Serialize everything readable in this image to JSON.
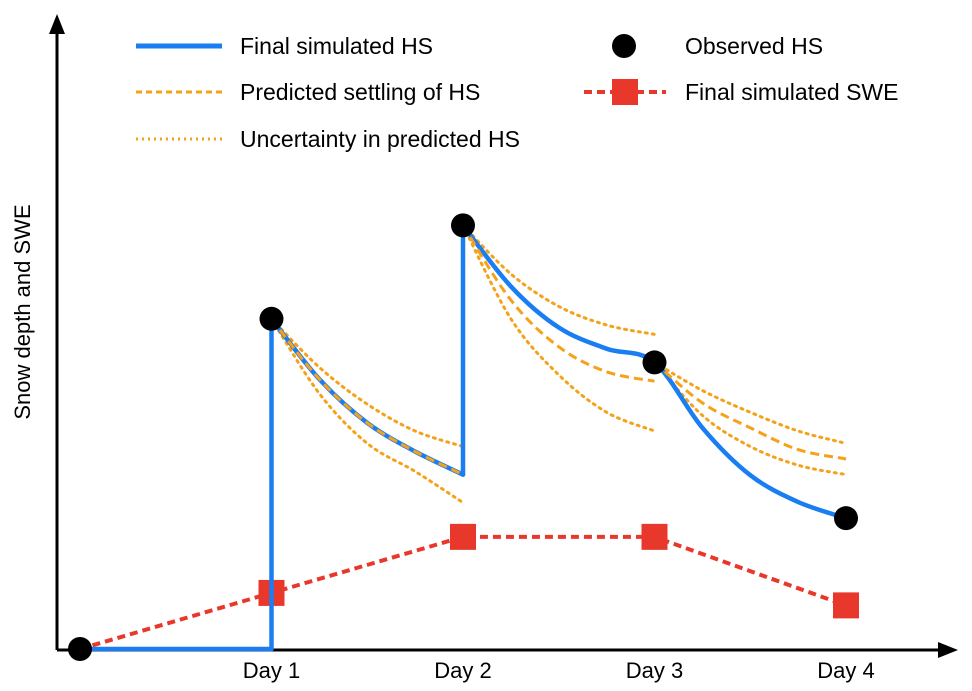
{
  "chart_data": {
    "type": "line",
    "title": "",
    "xlabel": "",
    "ylabel": "Snow depth and SWE",
    "categories": [
      "Day 1",
      "Day 2",
      "Day 3",
      "Day 4"
    ],
    "xlim": [
      0,
      4
    ],
    "ylim": [
      0,
      10
    ],
    "grid": false,
    "legend": {
      "placement": "top",
      "entries": [
        {
          "key": "final_hs",
          "label": "Final simulated HS"
        },
        {
          "key": "settling",
          "label": "Predicted settling of HS"
        },
        {
          "key": "uncertainty",
          "label": "Uncertainty in predicted HS"
        },
        {
          "key": "observed",
          "label": "Observed HS"
        },
        {
          "key": "swe",
          "label": "Final simulated SWE"
        }
      ]
    },
    "colors": {
      "final_hs": "#1a7ef2",
      "settling": "#f5a21b",
      "uncertainty": "#f5a21b",
      "observed": "#000000",
      "swe": "#e8382c",
      "axis": "#000000"
    },
    "series": [
      {
        "name": "Observed HS",
        "style": "marker",
        "points": [
          [
            0,
            0
          ],
          [
            1,
            5.3
          ],
          [
            2,
            6.8
          ],
          [
            3,
            4.6
          ],
          [
            4,
            2.1
          ]
        ]
      },
      {
        "name": "Final simulated SWE",
        "style": "dashed-square",
        "points": [
          [
            0,
            0
          ],
          [
            1,
            0.9
          ],
          [
            2,
            1.8
          ],
          [
            3,
            1.8
          ],
          [
            4,
            0.7
          ]
        ]
      },
      {
        "name": "Final simulated HS",
        "style": "solid",
        "points": [
          [
            0,
            0
          ],
          [
            1,
            0
          ],
          [
            1,
            5.3
          ],
          [
            1.25,
            4.33
          ],
          [
            1.5,
            3.63
          ],
          [
            1.75,
            3.17
          ],
          [
            2,
            2.8
          ],
          [
            2,
            6.8
          ],
          [
            2.25,
            5.82
          ],
          [
            2.5,
            5.16
          ],
          [
            2.75,
            4.82
          ],
          [
            3,
            4.6
          ],
          [
            3.25,
            3.55
          ],
          [
            3.5,
            2.79
          ],
          [
            3.75,
            2.36
          ],
          [
            4,
            2.1
          ]
        ]
      },
      {
        "name": "Predicted settling of HS",
        "style": "dashed",
        "segments": [
          [
            [
              1,
              5.3
            ],
            [
              1.25,
              4.33
            ],
            [
              1.5,
              3.63
            ],
            [
              1.75,
              3.17
            ],
            [
              2,
              2.8
            ]
          ],
          [
            [
              2,
              6.8
            ],
            [
              2.25,
              5.6
            ],
            [
              2.5,
              4.85
            ],
            [
              2.75,
              4.45
            ],
            [
              3,
              4.3
            ]
          ],
          [
            [
              3,
              4.6
            ],
            [
              3.25,
              3.95
            ],
            [
              3.5,
              3.55
            ],
            [
              3.75,
              3.2
            ],
            [
              4,
              3.05
            ]
          ]
        ]
      },
      {
        "name": "Uncertainty in predicted HS",
        "style": "dotted",
        "segments": [
          [
            [
              1,
              5.3
            ],
            [
              1.25,
              4.52
            ],
            [
              1.5,
              3.93
            ],
            [
              1.75,
              3.5
            ],
            [
              2,
              3.25
            ]
          ],
          [
            [
              1,
              5.3
            ],
            [
              1.25,
              4.1
            ],
            [
              1.5,
              3.3
            ],
            [
              1.75,
              2.85
            ],
            [
              2,
              2.35
            ]
          ],
          [
            [
              2,
              6.8
            ],
            [
              2.25,
              6.02
            ],
            [
              2.5,
              5.5
            ],
            [
              2.75,
              5.2
            ],
            [
              3,
              5.05
            ]
          ],
          [
            [
              2,
              6.8
            ],
            [
              2.25,
              5.3
            ],
            [
              2.5,
              4.4
            ],
            [
              2.75,
              3.8
            ],
            [
              3,
              3.5
            ]
          ],
          [
            [
              3,
              4.6
            ],
            [
              3.25,
              4.15
            ],
            [
              3.5,
              3.8
            ],
            [
              3.75,
              3.5
            ],
            [
              4,
              3.3
            ]
          ],
          [
            [
              3,
              4.6
            ],
            [
              3.25,
              3.75
            ],
            [
              3.5,
              3.25
            ],
            [
              3.75,
              2.95
            ],
            [
              4,
              2.8
            ]
          ]
        ]
      }
    ]
  }
}
